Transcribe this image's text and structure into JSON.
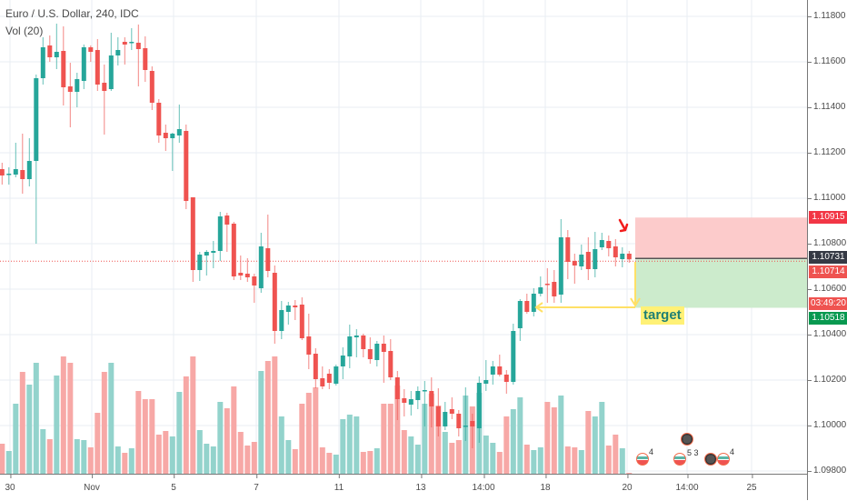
{
  "header": {
    "title": "Euro / U.S. Dollar, 240, IDC",
    "volume_label": "Vol (20)"
  },
  "colors": {
    "up": "#26a69a",
    "down": "#ef5350",
    "up_vol": "#93d3cc",
    "down_vol": "#f7a8a6",
    "grid": "#e9eef3",
    "risk_zone": "#fccbcb",
    "reward_zone": "#ccebcc",
    "annotation": "#ffe066"
  },
  "price_axis": {
    "ticks": [
      "1.11800",
      "1.11600",
      "1.11400",
      "1.11200",
      "1.11000",
      "1.10800",
      "1.10600",
      "1.10400",
      "1.10200",
      "1.10000",
      "1.09800"
    ],
    "badges": {
      "stop": "1.10915",
      "last": "1.10731",
      "bid": "1.10714",
      "countdown": "03:49:20",
      "target": "1.10518"
    }
  },
  "time_axis": {
    "ticks": [
      "30",
      "Nov",
      "5",
      "7",
      "11",
      "13",
      "14:00",
      "18",
      "20",
      "14:00",
      "25"
    ]
  },
  "annotations": {
    "target_label": "target"
  },
  "events": [
    {
      "type": "flag",
      "count": "4"
    },
    {
      "type": "flag",
      "count": "5 3"
    },
    {
      "type": "dark"
    },
    {
      "type": "dark"
    },
    {
      "type": "flag",
      "count": "4"
    }
  ],
  "chart_data": {
    "type": "candlestick",
    "title": "Euro / U.S. Dollar, 240, IDC",
    "ylim": [
      1.0978,
      1.119
    ],
    "yticks": [
      1.118,
      1.116,
      1.114,
      1.112,
      1.11,
      1.108,
      1.106,
      1.104,
      1.102,
      1.1,
      1.098
    ],
    "xticks": [
      "30",
      "Nov",
      "5",
      "7",
      "11",
      "13",
      "14:00",
      "18",
      "20",
      "14:00",
      "25"
    ],
    "grid": true,
    "position": {
      "side": "short",
      "entry": 1.10731,
      "stop": 1.10915,
      "target": 1.10518
    },
    "last_price": 1.10731,
    "ohlc": [
      [
        1.11128,
        1.11156,
        1.1106,
        1.111
      ],
      [
        1.11104,
        1.11136,
        1.1106,
        1.11108
      ],
      [
        1.11104,
        1.11244,
        1.11092,
        1.11128
      ],
      [
        1.11124,
        1.11284,
        1.1102,
        1.11084
      ],
      [
        1.11084,
        1.11264,
        1.11052,
        1.11164
      ],
      [
        1.11164,
        1.11544,
        1.108,
        1.11528
      ],
      [
        1.11528,
        1.11708,
        1.115,
        1.11664
      ],
      [
        1.11672,
        1.11716,
        1.116,
        1.1162
      ],
      [
        1.1162,
        1.11768,
        1.11568,
        1.11644
      ],
      [
        1.11648,
        1.11756,
        1.11408,
        1.11488
      ],
      [
        1.11492,
        1.11596,
        1.11312,
        1.11468
      ],
      [
        1.11468,
        1.11552,
        1.114,
        1.11524
      ],
      [
        1.11516,
        1.11676,
        1.1148,
        1.11664
      ],
      [
        1.11664,
        1.11672,
        1.116,
        1.11644
      ],
      [
        1.11652,
        1.117,
        1.11472,
        1.115
      ],
      [
        1.11508,
        1.11588,
        1.1128,
        1.11472
      ],
      [
        1.1148,
        1.11728,
        1.11472,
        1.11628
      ],
      [
        1.11628,
        1.11708,
        1.11584,
        1.11652
      ],
      [
        1.11688,
        1.11708,
        1.11588,
        1.11676
      ],
      [
        1.11684,
        1.11748,
        1.11652,
        1.11688
      ],
      [
        1.11684,
        1.11764,
        1.11492,
        1.11656
      ],
      [
        1.1166,
        1.11712,
        1.11512,
        1.11564
      ],
      [
        1.1156,
        1.1158,
        1.11388,
        1.1142
      ],
      [
        1.1142,
        1.11436,
        1.11244,
        1.11276
      ],
      [
        1.11288,
        1.11324,
        1.11208,
        1.11264
      ],
      [
        1.11264,
        1.11288,
        1.1112,
        1.11284
      ],
      [
        1.11276,
        1.11412,
        1.11244,
        1.11304
      ],
      [
        1.11296,
        1.11324,
        1.10952,
        1.10988
      ],
      [
        1.11004,
        1.11004,
        1.10632,
        1.10684
      ],
      [
        1.10684,
        1.10764,
        1.10636,
        1.10752
      ],
      [
        1.10748,
        1.10772,
        1.1066,
        1.10764
      ],
      [
        1.1076,
        1.10812,
        1.10692,
        1.10768
      ],
      [
        1.10768,
        1.1094,
        1.10724,
        1.1092
      ],
      [
        1.10924,
        1.10936,
        1.10764,
        1.10884
      ],
      [
        1.10888,
        1.10896,
        1.1064,
        1.10656
      ],
      [
        1.10672,
        1.10748,
        1.1064,
        1.1066
      ],
      [
        1.10668,
        1.10736,
        1.10632,
        1.10652
      ],
      [
        1.10656,
        1.10668,
        1.1054,
        1.10616
      ],
      [
        1.10604,
        1.10848,
        1.10584,
        1.10788
      ],
      [
        1.1078,
        1.10928,
        1.10652,
        1.1068
      ],
      [
        1.10672,
        1.10704,
        1.1036,
        1.10416
      ],
      [
        1.10416,
        1.10548,
        1.1038,
        1.10508
      ],
      [
        1.105,
        1.10544,
        1.10444,
        1.10528
      ],
      [
        1.10528,
        1.10552,
        1.10464,
        1.1052
      ],
      [
        1.10532,
        1.10564,
        1.10376,
        1.10384
      ],
      [
        1.10392,
        1.10492,
        1.10248,
        1.10312
      ],
      [
        1.10316,
        1.1034,
        1.10164,
        1.10204
      ],
      [
        1.10208,
        1.1026,
        1.1016,
        1.10172
      ],
      [
        1.10228,
        1.10248,
        1.1016,
        1.10188
      ],
      [
        1.10184,
        1.10268,
        1.10176,
        1.1026
      ],
      [
        1.1026,
        1.10344,
        1.10204,
        1.10308
      ],
      [
        1.10304,
        1.10444,
        1.10252,
        1.10392
      ],
      [
        1.10388,
        1.10424,
        1.103,
        1.10396
      ],
      [
        1.10396,
        1.10404,
        1.103,
        1.10336
      ],
      [
        1.10336,
        1.10388,
        1.10272,
        1.10292
      ],
      [
        1.10288,
        1.10372,
        1.1026,
        1.1036
      ],
      [
        1.1036,
        1.10396,
        1.10188,
        1.10324
      ],
      [
        1.10328,
        1.1038,
        1.102,
        1.10212
      ],
      [
        1.10212,
        1.1024,
        1.10024,
        1.10116
      ],
      [
        1.1012,
        1.1016,
        1.1004,
        1.101
      ],
      [
        1.10092,
        1.10152,
        1.10044,
        1.10116
      ],
      [
        1.10112,
        1.10172,
        1.10072,
        1.10152
      ],
      [
        1.10152,
        1.10196,
        1.09996,
        1.10156
      ],
      [
        1.10152,
        1.10212,
        1.09992,
        1.10084
      ],
      [
        1.10084,
        1.10164,
        1.09952,
        1.09996
      ],
      [
        1.09996,
        1.10104,
        1.0998,
        1.1006
      ],
      [
        1.10072,
        1.10124,
        1.10028,
        1.10052
      ],
      [
        1.10052,
        1.10068,
        1.09952,
        1.09988
      ],
      [
        1.09996,
        1.10168,
        1.09932,
        1.1
      ],
      [
        1.1002,
        1.10052,
        1.099,
        1.09996
      ],
      [
        1.09988,
        1.10216,
        1.09924,
        1.10188
      ],
      [
        1.10184,
        1.10288,
        1.10152,
        1.102
      ],
      [
        1.10224,
        1.10284,
        1.1018,
        1.1026
      ],
      [
        1.1026,
        1.10312,
        1.10216,
        1.10224
      ],
      [
        1.10224,
        1.10244,
        1.1014,
        1.10192
      ],
      [
        1.10192,
        1.10448,
        1.1018,
        1.10416
      ],
      [
        1.10428,
        1.10556,
        1.10372,
        1.10548
      ],
      [
        1.10548,
        1.1058,
        1.10492,
        1.105
      ],
      [
        1.105,
        1.10604,
        1.1048,
        1.1058
      ],
      [
        1.1058,
        1.10656,
        1.10568,
        1.10608
      ],
      [
        1.10624,
        1.10692,
        1.1054,
        1.1062
      ],
      [
        1.10632,
        1.10684,
        1.1054,
        1.10568
      ],
      [
        1.10576,
        1.10908,
        1.1054,
        1.10828
      ],
      [
        1.10828,
        1.1086,
        1.10644,
        1.1072
      ],
      [
        1.10724,
        1.10756,
        1.10624,
        1.10704
      ],
      [
        1.107,
        1.10796,
        1.10684,
        1.10752
      ],
      [
        1.10764,
        1.10828,
        1.1064,
        1.10688
      ],
      [
        1.10688,
        1.10852,
        1.10652,
        1.10776
      ],
      [
        1.10784,
        1.10848,
        1.10772,
        1.10816
      ],
      [
        1.10812,
        1.10836,
        1.10744,
        1.1078
      ],
      [
        1.10788,
        1.1082,
        1.107,
        1.1074
      ],
      [
        1.10732,
        1.10784,
        1.10696,
        1.10756
      ],
      [
        1.10756,
        1.10768,
        1.10716,
        1.10731
      ]
    ],
    "volume": [
      33,
      25,
      77,
      112,
      98,
      122,
      49,
      38,
      108,
      129,
      122,
      38,
      37,
      29,
      67,
      112,
      122,
      30,
      23,
      28,
      91,
      82,
      82,
      43,
      47,
      41,
      90,
      107,
      129,
      48,
      33,
      30,
      79,
      72,
      96,
      46,
      31,
      35,
      113,
      124,
      129,
      63,
      37,
      27,
      77,
      89,
      95,
      29,
      23,
      21,
      60,
      65,
      63,
      24,
      25,
      28,
      77,
      77,
      97,
      48,
      41,
      32,
      77,
      88,
      75,
      46,
      34,
      37,
      86,
      74,
      89,
      42,
      34,
      24,
      63,
      71,
      84,
      32,
      26,
      29,
      79,
      73,
      86,
      30,
      29,
      26,
      69,
      63,
      79,
      31,
      43,
      28,
      1
    ]
  }
}
